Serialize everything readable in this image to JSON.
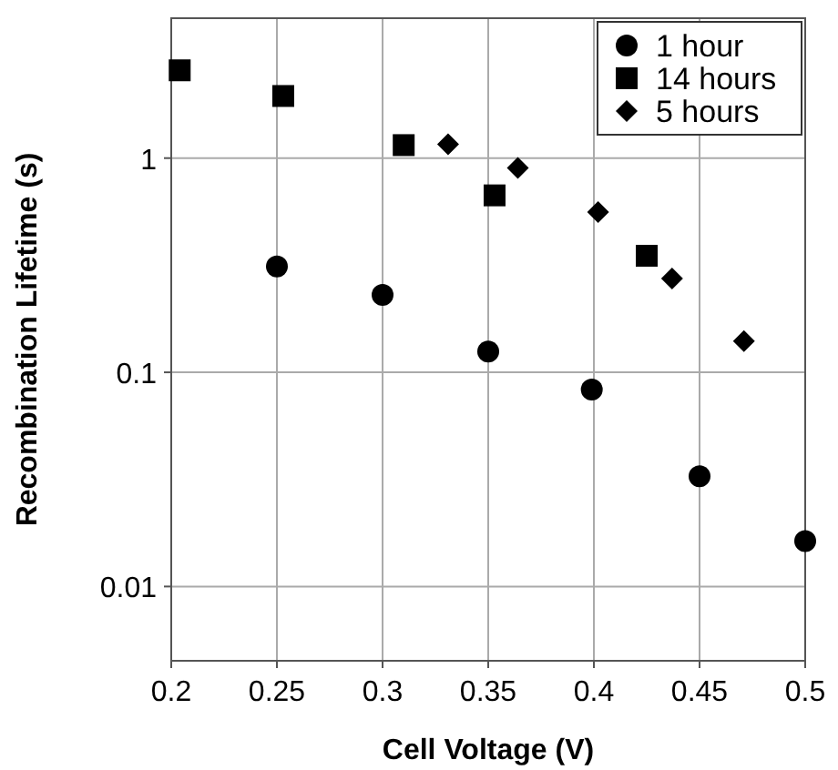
{
  "chart_data": {
    "type": "scatter",
    "xlabel": "Cell Voltage (V)",
    "ylabel": "Recombination Lifetime (s)",
    "log": "y",
    "xlim": [
      0.2,
      0.5
    ],
    "xticks": [
      0.2,
      0.25,
      0.3,
      0.35,
      0.4,
      0.45,
      0.5
    ],
    "ylim": [
      0.0045,
      4.5
    ],
    "yticks": [
      0.01,
      0.1,
      1
    ],
    "grid": true,
    "legend": "top right",
    "series": [
      {
        "name": "1 hour",
        "color": "#000000",
        "marker": "circle",
        "x": [
          0.25,
          0.3,
          0.35,
          0.399,
          0.45,
          0.5
        ],
        "values": [
          0.312,
          0.23,
          0.125,
          0.083,
          0.0327,
          0.0163
        ]
      },
      {
        "name": "14 hours",
        "color": "#000000",
        "marker": "square",
        "x": [
          0.204,
          0.253,
          0.31,
          0.353,
          0.425
        ],
        "values": [
          2.57,
          1.95,
          1.15,
          0.67,
          0.35
        ]
      },
      {
        "name": "5 hours",
        "color": "#000000",
        "marker": "diamond",
        "x": [
          0.331,
          0.364,
          0.402,
          0.437,
          0.471
        ],
        "values": [
          1.16,
          0.9,
          0.56,
          0.274,
          0.14
        ]
      }
    ]
  }
}
